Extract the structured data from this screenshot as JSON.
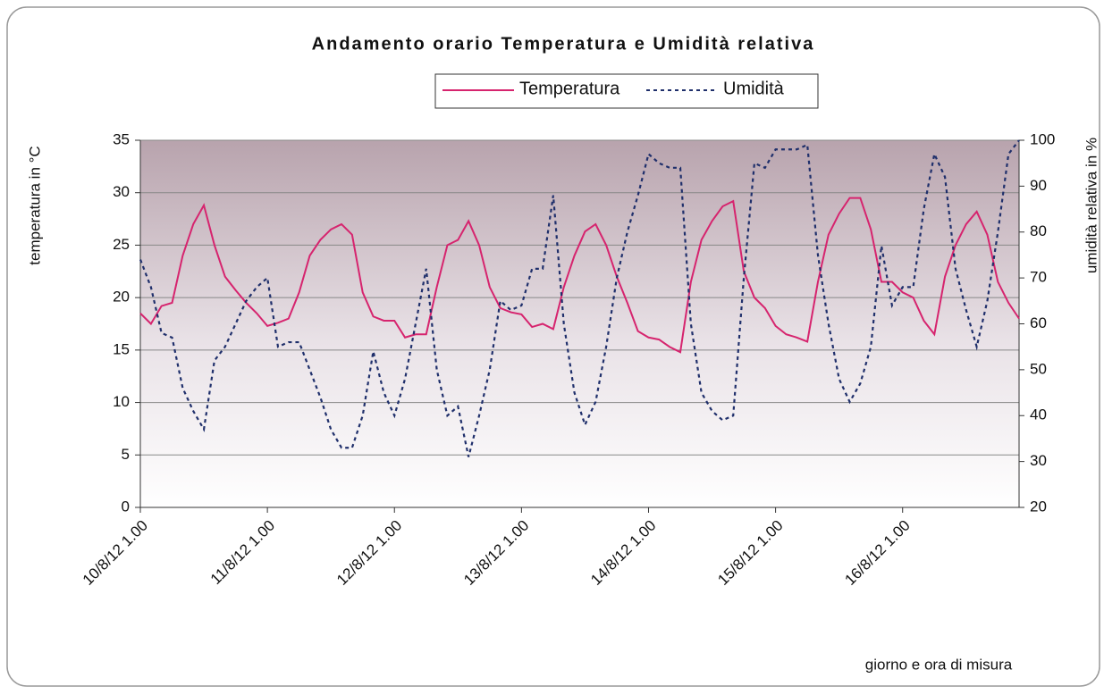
{
  "chart_data": {
    "type": "line",
    "title": "Andamento orario Temperatura e Umidità relativa",
    "x_label": "giorno e ora di misura",
    "y_label": "temperatura in °C",
    "y2_label": "umidità relativa in %",
    "categories": [
      "10/8/12 1.00",
      null,
      null,
      null,
      null,
      null,
      null,
      null,
      null,
      null,
      null,
      null,
      "11/8/12 1.00",
      null,
      null,
      null,
      null,
      null,
      null,
      null,
      null,
      null,
      null,
      null,
      "12/8/12 1.00",
      null,
      null,
      null,
      null,
      null,
      null,
      null,
      null,
      null,
      null,
      null,
      "13/8/12 1.00",
      null,
      null,
      null,
      null,
      null,
      null,
      null,
      null,
      null,
      null,
      null,
      "14/8/12 1.00",
      null,
      null,
      null,
      null,
      null,
      null,
      null,
      null,
      null,
      null,
      null,
      "15/8/12 1.00",
      null,
      null,
      null,
      null,
      null,
      null,
      null,
      null,
      null,
      null,
      null,
      "16/8/12 1.00",
      null,
      null,
      null,
      null,
      null,
      null,
      null,
      null,
      null,
      null,
      null
    ],
    "series": [
      {
        "name": "Temperatura",
        "color": "#d6246e",
        "dash": false,
        "values": [
          18.5,
          17.5,
          19.2,
          19.5,
          24,
          27,
          28.8,
          25,
          22,
          20.7,
          19.5,
          18.5,
          17.3,
          17.6,
          18,
          20.5,
          24,
          25.5,
          26.5,
          27,
          26,
          20.5,
          18.2,
          17.8,
          17.8,
          16.2,
          16.5,
          16.5,
          21,
          25,
          25.5,
          27.3,
          25,
          21,
          19,
          18.6,
          18.4,
          17.2,
          17.5,
          17,
          21,
          24,
          26.3,
          27,
          25,
          22,
          19.5,
          16.8,
          16.2,
          16,
          15.3,
          14.8,
          21.5,
          25.5,
          27.3,
          28.7,
          29.2,
          22.5,
          20,
          19,
          17.3,
          16.5,
          16.2,
          15.8,
          21.5,
          26,
          28,
          29.5,
          29.5,
          26.5,
          21.5,
          21.5,
          20.5,
          20,
          17.8,
          16.5,
          22,
          25,
          27,
          28.2,
          26,
          21.5,
          19.5,
          18
        ]
      },
      {
        "name": "Umidità",
        "color": "#1f2f6b",
        "dash": true,
        "axis": "y2",
        "values": [
          74,
          68,
          58,
          57,
          46,
          41,
          37,
          52,
          55,
          60,
          65,
          68,
          70,
          55,
          56,
          56,
          50,
          44,
          37,
          33,
          33,
          40,
          54,
          45,
          40,
          48,
          60,
          72,
          50,
          40,
          42,
          31,
          40,
          50,
          65,
          63,
          64,
          72,
          72,
          88,
          60,
          45,
          38,
          43,
          55,
          70,
          80,
          88,
          97,
          95,
          94,
          94,
          60,
          45,
          41,
          39,
          40,
          70,
          95,
          94,
          98,
          98,
          98,
          99,
          75,
          60,
          48,
          43,
          47,
          55,
          77,
          64,
          68,
          68,
          85,
          97,
          92,
          72,
          63,
          55,
          65,
          80,
          97,
          100
        ]
      }
    ],
    "ylim": [
      0,
      35
    ],
    "yticks": [
      0,
      5,
      10,
      15,
      20,
      25,
      30,
      35
    ],
    "y2lim": [
      20,
      100
    ],
    "y2ticks": [
      20,
      30,
      40,
      50,
      60,
      70,
      80,
      90,
      100
    ],
    "grid": true,
    "legend": "top"
  }
}
